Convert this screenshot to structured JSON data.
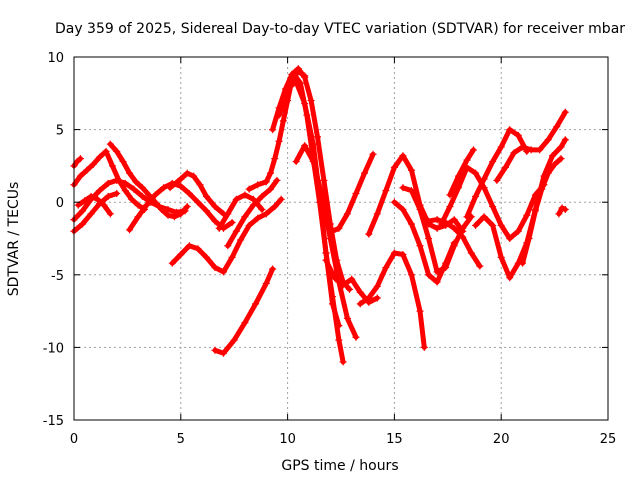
{
  "chart_data": {
    "type": "scatter",
    "title": "Day 359 of 2025, Sidereal Day-to-day VTEC variation (SDTVAR) for receiver mbar",
    "xlabel": "GPS time / hours",
    "ylabel": "SDTVAR / TECUs",
    "xlim": [
      0,
      25
    ],
    "ylim": [
      -15,
      10
    ],
    "xticks": [
      0,
      5,
      10,
      15,
      20,
      25
    ],
    "yticks": [
      -15,
      -10,
      -5,
      0,
      5,
      10
    ],
    "xtick_labels": [
      "0",
      "5",
      "10",
      "15",
      "20",
      "25"
    ],
    "ytick_labels": [
      "-15",
      "-10",
      "-5",
      "0",
      "5",
      "10"
    ],
    "grid": true,
    "legend": "none",
    "marker": "+",
    "color": "#ff0000",
    "series": [
      {
        "x": [
          0.0,
          0.3,
          0.6,
          0.9,
          1.2,
          1.5,
          1.8,
          2.1,
          2.4,
          2.7,
          3.0,
          3.3
        ],
        "y": [
          1.2,
          1.8,
          2.2,
          2.6,
          3.1,
          3.5,
          2.5,
          1.5,
          0.8,
          0.2,
          -0.2,
          -0.5
        ]
      },
      {
        "x": [
          0.0,
          0.15,
          0.3
        ],
        "y": [
          2.5,
          2.8,
          3.0
        ]
      },
      {
        "x": [
          0.0,
          0.4,
          0.8,
          1.2,
          1.6,
          2.0,
          2.4,
          2.8,
          3.2,
          3.6,
          4.0,
          4.4,
          4.8,
          5.2
        ],
        "y": [
          -1.2,
          -0.6,
          0.2,
          0.8,
          1.3,
          1.5,
          1.3,
          0.9,
          0.4,
          0.0,
          -0.3,
          -0.5,
          -0.7,
          -0.6
        ]
      },
      {
        "x": [
          0.0,
          0.4,
          0.8,
          1.2,
          1.6,
          2.0
        ],
        "y": [
          -2.0,
          -1.5,
          -0.8,
          -0.1,
          0.4,
          0.6
        ]
      },
      {
        "x": [
          0.2,
          0.5,
          0.8,
          1.1,
          1.4,
          1.7
        ],
        "y": [
          -0.2,
          0.1,
          0.4,
          0.2,
          -0.2,
          -0.8
        ]
      },
      {
        "x": [
          1.7,
          2.0,
          2.3,
          2.6,
          2.9,
          3.2,
          3.5,
          3.8,
          4.1,
          4.4,
          4.7,
          5.0,
          5.3
        ],
        "y": [
          4.0,
          3.5,
          2.8,
          2.0,
          1.4,
          1.0,
          0.5,
          0.0,
          -0.5,
          -0.9,
          -1.0,
          -0.8,
          -0.3
        ]
      },
      {
        "x": [
          2.6,
          3.0,
          3.4,
          3.8,
          4.2,
          4.6,
          5.0,
          5.4,
          5.8,
          6.2,
          6.6,
          7.0,
          7.4
        ],
        "y": [
          -1.9,
          -1.0,
          -0.2,
          0.5,
          1.0,
          1.3,
          1.1,
          0.6,
          0.0,
          -0.6,
          -1.3,
          -1.8,
          -1.4
        ]
      },
      {
        "x": [
          4.5,
          5.0,
          5.3,
          5.6,
          5.9,
          6.2,
          6.6,
          7.0
        ],
        "y": [
          1.0,
          1.6,
          2.0,
          1.8,
          1.2,
          0.4,
          -0.3,
          -0.8
        ]
      },
      {
        "x": [
          4.6,
          5.0,
          5.4,
          5.8,
          6.2,
          6.6,
          7.0,
          7.4,
          7.8,
          8.2,
          8.6,
          9.0,
          9.4,
          9.7
        ],
        "y": [
          -4.2,
          -3.6,
          -3.0,
          -3.2,
          -3.8,
          -4.5,
          -4.8,
          -3.8,
          -2.6,
          -1.6,
          -1.1,
          -0.8,
          -0.3,
          0.2
        ]
      },
      {
        "x": [
          6.6,
          7.0,
          7.5,
          8.0,
          8.5,
          9.0,
          9.3
        ],
        "y": [
          -10.2,
          -10.4,
          -9.5,
          -8.3,
          -7.0,
          -5.6,
          -4.6
        ]
      },
      {
        "x": [
          6.8,
          7.2,
          7.6,
          8.0,
          8.4,
          8.8
        ],
        "y": [
          -1.8,
          -0.8,
          0.2,
          0.5,
          0.2,
          -0.5
        ]
      },
      {
        "x": [
          7.2,
          7.6,
          8.0,
          8.4,
          8.8,
          9.2,
          9.5
        ],
        "y": [
          -3.0,
          -2.0,
          -1.0,
          -0.2,
          0.4,
          0.9,
          1.5
        ]
      },
      {
        "x": [
          8.2,
          8.6,
          9.0,
          9.2,
          9.4,
          9.6,
          9.8,
          10.0,
          10.2,
          10.5,
          10.8
        ],
        "y": [
          0.9,
          1.2,
          1.4,
          2.0,
          3.0,
          4.2,
          5.6,
          7.0,
          8.4,
          9.0,
          8.7
        ]
      },
      {
        "x": [
          9.3,
          9.6,
          9.9,
          10.2,
          10.5,
          10.8,
          11.1,
          11.4,
          11.7,
          12.0,
          12.3,
          12.6,
          12.9
        ],
        "y": [
          5.0,
          6.5,
          7.8,
          8.8,
          9.2,
          8.6,
          7.0,
          4.5,
          1.5,
          -1.5,
          -4.0,
          -5.5,
          -6.0
        ]
      },
      {
        "x": [
          9.6,
          10.0,
          10.4,
          10.8,
          11.2,
          11.5,
          11.8,
          12.1,
          12.4
        ],
        "y": [
          6.0,
          7.8,
          8.3,
          6.8,
          4.0,
          0.5,
          -3.5,
          -7.0,
          -8.5
        ]
      },
      {
        "x": [
          10.0,
          10.3,
          10.6,
          10.9,
          11.2,
          11.5,
          11.8,
          12.1,
          12.4,
          12.6
        ],
        "y": [
          8.0,
          8.8,
          8.2,
          6.0,
          3.0,
          0.0,
          -3.5,
          -6.5,
          -9.5,
          -11.0
        ]
      },
      {
        "x": [
          10.4,
          10.8,
          11.2,
          11.6,
          12.0,
          12.4,
          12.8,
          13.2
        ],
        "y": [
          2.8,
          3.9,
          2.8,
          0.5,
          -2.5,
          -5.5,
          -8.0,
          -9.3
        ]
      },
      {
        "x": [
          11.8,
          12.1,
          12.4,
          12.8,
          13.2,
          13.6,
          14.0
        ],
        "y": [
          -1.3,
          -2.0,
          -1.8,
          -0.8,
          0.6,
          2.0,
          3.3
        ]
      },
      {
        "x": [
          11.8,
          12.2,
          12.6,
          13.0,
          13.4,
          13.8,
          14.2
        ],
        "y": [
          -4.0,
          -5.2,
          -5.7,
          -5.3,
          -6.2,
          -6.9,
          -6.6
        ]
      },
      {
        "x": [
          13.4,
          13.8,
          14.2,
          14.6,
          15.0,
          15.4,
          15.8,
          16.2,
          16.4
        ],
        "y": [
          -7.0,
          -6.6,
          -5.8,
          -4.5,
          -3.5,
          -3.6,
          -5.0,
          -7.5,
          -10.0
        ]
      },
      {
        "x": [
          13.8,
          14.2,
          14.6,
          15.0,
          15.4,
          15.8,
          16.2,
          16.6,
          17.0,
          17.4,
          17.8,
          18.2
        ],
        "y": [
          -2.2,
          -0.8,
          0.8,
          2.4,
          3.2,
          2.2,
          -0.2,
          -1.5,
          -1.8,
          -1.6,
          -1.2,
          -2.0
        ]
      },
      {
        "x": [
          15.0,
          15.4,
          15.8,
          16.2,
          16.6,
          17.0,
          17.4,
          17.8
        ],
        "y": [
          0.0,
          -0.5,
          -1.5,
          -3.0,
          -5.0,
          -5.5,
          -4.2,
          -2.8
        ]
      },
      {
        "x": [
          15.4,
          15.8,
          16.2,
          16.6,
          17.0,
          17.4,
          17.8,
          18.2,
          18.6
        ],
        "y": [
          1.0,
          0.8,
          -0.5,
          -2.5,
          -4.8,
          -4.5,
          -3.0,
          -1.8,
          -1.0
        ]
      },
      {
        "x": [
          16.6,
          17.0,
          17.4,
          17.8,
          18.2,
          18.6,
          19.0
        ],
        "y": [
          -1.3,
          -1.2,
          -1.4,
          -1.8,
          -2.4,
          -3.5,
          -4.4
        ]
      },
      {
        "x": [
          17.2,
          17.6,
          18.0,
          18.4,
          18.8,
          19.2,
          19.6,
          20.0,
          20.4,
          20.8,
          21.2,
          21.6,
          22.0
        ],
        "y": [
          -1.5,
          -0.3,
          1.0,
          2.4,
          2.0,
          1.0,
          -0.3,
          -1.6,
          -2.5,
          -2.0,
          -0.9,
          0.5,
          1.2
        ]
      },
      {
        "x": [
          17.6,
          18.0,
          18.4,
          18.7
        ],
        "y": [
          0.5,
          1.8,
          2.9,
          3.6
        ]
      },
      {
        "x": [
          18.4,
          18.8,
          19.2,
          19.6,
          20.0,
          20.4,
          20.8,
          21.2
        ],
        "y": [
          -1.0,
          0.4,
          1.6,
          2.8,
          3.8,
          5.0,
          4.6,
          3.5
        ]
      },
      {
        "x": [
          18.8,
          19.2,
          19.6,
          20.0,
          20.4,
          20.8,
          21.2,
          21.6,
          22.0,
          22.4,
          22.8,
          23.0
        ],
        "y": [
          -1.6,
          -1.0,
          -1.6,
          -3.8,
          -5.2,
          -4.2,
          -2.8,
          -0.5,
          1.8,
          3.2,
          3.8,
          4.3
        ]
      },
      {
        "x": [
          19.8,
          20.2,
          20.6,
          21.0,
          21.4,
          21.8,
          22.2,
          22.6,
          23.0
        ],
        "y": [
          1.5,
          2.4,
          3.4,
          3.8,
          3.6,
          3.6,
          4.3,
          5.2,
          6.2
        ]
      },
      {
        "x": [
          21.0,
          21.3,
          21.6,
          21.9,
          22.2,
          22.5,
          22.8
        ],
        "y": [
          -4.2,
          -2.5,
          -0.6,
          0.9,
          2.0,
          2.6,
          3.0
        ]
      },
      {
        "x": [
          22.7,
          22.85,
          23.0
        ],
        "y": [
          -0.8,
          -0.4,
          -0.5
        ]
      }
    ]
  }
}
